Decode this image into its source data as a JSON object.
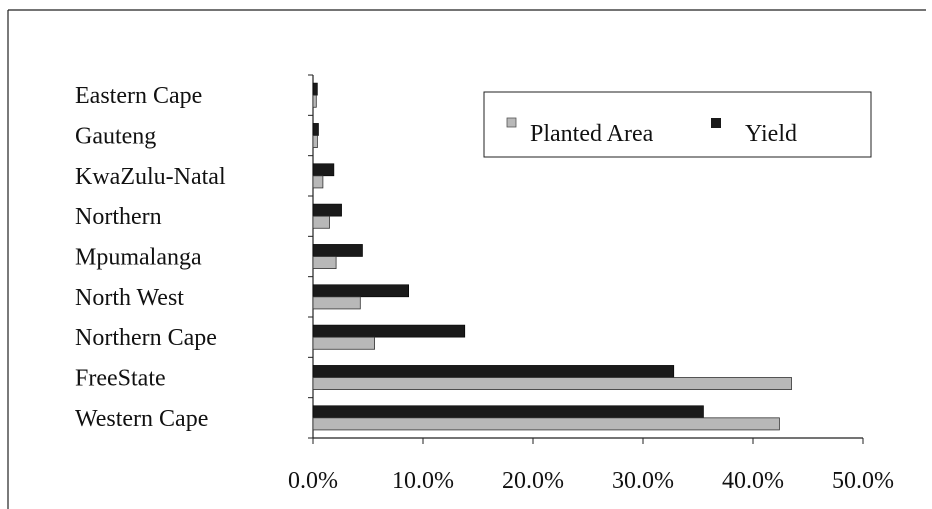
{
  "chart_data": {
    "type": "bar",
    "orientation": "horizontal",
    "categories": [
      "Eastern Cape",
      "Gauteng",
      "KwaZulu-Natal",
      "Northern",
      "Mpumalanga",
      "North West",
      "Northern Cape",
      "FreeState",
      "Western Cape"
    ],
    "series": [
      {
        "name": "Planted Area",
        "color": "#b8b8b8",
        "values": [
          0.3,
          0.4,
          0.9,
          1.5,
          2.1,
          4.3,
          5.6,
          43.5,
          42.4
        ]
      },
      {
        "name": "Yield",
        "color": "#1a1a1a",
        "values": [
          0.4,
          0.5,
          1.9,
          2.6,
          4.5,
          8.7,
          13.8,
          32.8,
          35.5
        ]
      }
    ],
    "xlim": [
      0,
      50
    ],
    "xticks": [
      "0.0%",
      "10.0%",
      "20.0%",
      "30.0%",
      "40.0%",
      "50.0%"
    ],
    "xlabel": "",
    "ylabel": "",
    "title": "",
    "legend_position": "top-right",
    "grid": false
  }
}
